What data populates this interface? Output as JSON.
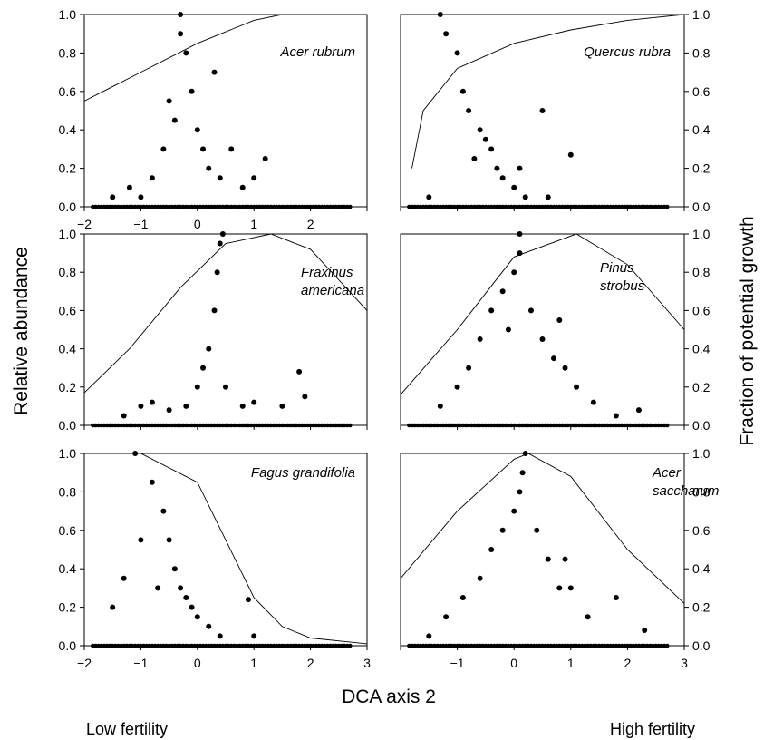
{
  "figure": {
    "ylabel_left": "Relative abundance",
    "ylabel_right": "Fraction of potential growth",
    "xlabel": "DCA axis 2",
    "fertility_low": "Low fertility",
    "fertility_high": "High fertility"
  },
  "chart_data": [
    {
      "type": "scatter",
      "title": "Acer rubrum",
      "xlim": [
        -2,
        3
      ],
      "ylim": [
        0,
        1
      ],
      "x_ticks": [
        "-2",
        "-1",
        "0",
        "1",
        "2"
      ],
      "y_ticks_left": [
        "0.0",
        "0.2",
        "0.4",
        "0.6",
        "0.8",
        "1.0"
      ],
      "y_ticks_right": [],
      "points_shown": "dense cloud centered near x=-0.2, y 0–1.0, most points below 0.5; many zeros spanning x -1.8 to 2.7",
      "abundance_points": [
        [
          -1.0,
          0.05
        ],
        [
          -0.8,
          0.15
        ],
        [
          -0.6,
          0.3
        ],
        [
          -0.5,
          0.55
        ],
        [
          -0.4,
          0.45
        ],
        [
          -0.3,
          1.0
        ],
        [
          -0.3,
          0.9
        ],
        [
          -0.2,
          0.8
        ],
        [
          -0.1,
          0.6
        ],
        [
          0.0,
          0.4
        ],
        [
          0.1,
          0.3
        ],
        [
          0.2,
          0.2
        ],
        [
          0.4,
          0.15
        ],
        [
          0.6,
          0.3
        ],
        [
          0.8,
          0.1
        ],
        [
          1.0,
          0.15
        ],
        [
          1.2,
          0.25
        ],
        [
          -1.2,
          0.1
        ],
        [
          -1.5,
          0.05
        ],
        [
          0.3,
          0.7
        ]
      ],
      "growth_curve": [
        [
          -2,
          0.55
        ],
        [
          -1,
          0.7
        ],
        [
          0,
          0.85
        ],
        [
          1,
          0.97
        ],
        [
          1.5,
          1.0
        ],
        [
          2,
          1.0
        ],
        [
          3,
          1.0
        ]
      ]
    },
    {
      "type": "scatter",
      "title": "Quercus rubra",
      "xlim": [
        -2,
        3
      ],
      "ylim": [
        0,
        1
      ],
      "x_ticks": [],
      "y_ticks_left": [],
      "y_ticks_right": [
        "0.0",
        "0.2",
        "0.4",
        "0.6",
        "0.8",
        "1.0"
      ],
      "points_shown": "points concentrated x -1.5 to 0.5, high abundances near x -1.3 (up to 1.0), decreasing toward x 0.5",
      "abundance_points": [
        [
          -1.3,
          1.0
        ],
        [
          -1.2,
          0.9
        ],
        [
          -1.0,
          0.8
        ],
        [
          -0.9,
          0.6
        ],
        [
          -0.8,
          0.5
        ],
        [
          -0.6,
          0.4
        ],
        [
          -0.5,
          0.35
        ],
        [
          -0.4,
          0.3
        ],
        [
          -0.3,
          0.2
        ],
        [
          -0.2,
          0.15
        ],
        [
          0.0,
          0.1
        ],
        [
          0.2,
          0.05
        ],
        [
          0.5,
          0.5
        ],
        [
          1.0,
          0.27
        ],
        [
          0.6,
          0.05
        ],
        [
          -1.5,
          0.05
        ],
        [
          -0.7,
          0.25
        ],
        [
          0.1,
          0.2
        ]
      ],
      "growth_curve": [
        [
          -1.8,
          0.2
        ],
        [
          -1.6,
          0.5
        ],
        [
          -1,
          0.72
        ],
        [
          0,
          0.85
        ],
        [
          1,
          0.92
        ],
        [
          2,
          0.97
        ],
        [
          3,
          1.0
        ]
      ]
    },
    {
      "type": "scatter",
      "title": "Fraxinus americana",
      "xlim": [
        -2,
        3
      ],
      "ylim": [
        0,
        1
      ],
      "x_ticks": [],
      "y_ticks_left": [
        "0.0",
        "0.2",
        "0.4",
        "0.6",
        "0.8",
        "1.0"
      ],
      "y_ticks_right": [],
      "points_shown": "mostly low abundance (<0.2) spread x -1.3 to 2, a spike near x 0.3–0.5 reaching 1.0",
      "abundance_points": [
        [
          -1.0,
          0.1
        ],
        [
          -0.8,
          0.12
        ],
        [
          -0.5,
          0.08
        ],
        [
          -0.2,
          0.1
        ],
        [
          0.0,
          0.2
        ],
        [
          0.1,
          0.3
        ],
        [
          0.2,
          0.4
        ],
        [
          0.3,
          0.6
        ],
        [
          0.35,
          0.8
        ],
        [
          0.4,
          0.95
        ],
        [
          0.45,
          1.0
        ],
        [
          0.5,
          0.2
        ],
        [
          0.8,
          0.1
        ],
        [
          1.0,
          0.12
        ],
        [
          1.5,
          0.1
        ],
        [
          1.8,
          0.28
        ],
        [
          1.9,
          0.15
        ],
        [
          -1.3,
          0.05
        ]
      ],
      "growth_curve": [
        [
          -2,
          0.17
        ],
        [
          -1.2,
          0.4
        ],
        [
          -0.3,
          0.72
        ],
        [
          0.5,
          0.95
        ],
        [
          1.3,
          1.0
        ],
        [
          2,
          0.92
        ],
        [
          3,
          0.6
        ]
      ]
    },
    {
      "type": "scatter",
      "title": "Pinus strobus",
      "xlim": [
        -2,
        3
      ],
      "ylim": [
        0,
        1
      ],
      "x_ticks": [],
      "y_ticks_left": [],
      "y_ticks_right": [
        "0.0",
        "0.2",
        "0.4",
        "0.6",
        "0.8",
        "1.0"
      ],
      "points_shown": "triangular cloud peaking near x 0.1 at 1.0, spreading x -1.5 to 2.3",
      "abundance_points": [
        [
          0.1,
          1.0
        ],
        [
          0.1,
          0.9
        ],
        [
          0.0,
          0.8
        ],
        [
          -0.2,
          0.7
        ],
        [
          -0.4,
          0.6
        ],
        [
          -0.6,
          0.45
        ],
        [
          -0.8,
          0.3
        ],
        [
          -1.0,
          0.2
        ],
        [
          -1.3,
          0.1
        ],
        [
          0.3,
          0.6
        ],
        [
          0.5,
          0.45
        ],
        [
          0.7,
          0.35
        ],
        [
          0.9,
          0.3
        ],
        [
          1.1,
          0.2
        ],
        [
          1.4,
          0.12
        ],
        [
          1.8,
          0.05
        ],
        [
          2.2,
          0.08
        ],
        [
          0.8,
          0.55
        ],
        [
          -0.1,
          0.5
        ]
      ],
      "growth_curve": [
        [
          -2,
          0.16
        ],
        [
          -1,
          0.5
        ],
        [
          0,
          0.88
        ],
        [
          1.1,
          1.0
        ],
        [
          2,
          0.84
        ],
        [
          3,
          0.5
        ]
      ]
    },
    {
      "type": "scatter",
      "title": "Fagus grandifolia",
      "xlim": [
        -2,
        3
      ],
      "ylim": [
        0,
        1
      ],
      "x_ticks": [
        "-2",
        "-1",
        "0",
        "1",
        "2",
        "3"
      ],
      "y_ticks_left": [
        "0.0",
        "0.2",
        "0.4",
        "0.6",
        "0.8",
        "1.0"
      ],
      "y_ticks_right": [],
      "points_shown": "points concentrated x -1.5 to 0.5, peak 1.0 near x -1.1, a few points to x 1",
      "abundance_points": [
        [
          -1.1,
          1.0
        ],
        [
          -0.8,
          0.85
        ],
        [
          -1.0,
          0.55
        ],
        [
          -1.3,
          0.35
        ],
        [
          -1.5,
          0.2
        ],
        [
          -0.6,
          0.7
        ],
        [
          -0.5,
          0.55
        ],
        [
          -0.4,
          0.4
        ],
        [
          -0.3,
          0.3
        ],
        [
          -0.2,
          0.25
        ],
        [
          -0.1,
          0.2
        ],
        [
          0.0,
          0.15
        ],
        [
          0.2,
          0.1
        ],
        [
          0.4,
          0.05
        ],
        [
          0.9,
          0.24
        ],
        [
          1.0,
          0.05
        ],
        [
          -0.7,
          0.3
        ]
      ],
      "growth_curve": [
        [
          -2,
          1.0
        ],
        [
          -1,
          1.0
        ],
        [
          0,
          0.85
        ],
        [
          0.5,
          0.55
        ],
        [
          1,
          0.25
        ],
        [
          1.5,
          0.1
        ],
        [
          2,
          0.04
        ],
        [
          3,
          0.01
        ]
      ]
    },
    {
      "type": "scatter",
      "title": "Acer saccharum",
      "xlim": [
        -2,
        3
      ],
      "ylim": [
        0,
        1
      ],
      "x_ticks": [
        "-1",
        "0",
        "1",
        "2",
        "3"
      ],
      "y_ticks_left": [],
      "y_ticks_right": [
        "0.0",
        "0.2",
        "0.4",
        "0.6",
        "0.8",
        "1.0"
      ],
      "points_shown": "cloud centered near x 0.1, peaks 1.0 near x 0.2, spread x -1.6 to 2.4",
      "abundance_points": [
        [
          0.2,
          1.0
        ],
        [
          0.15,
          0.9
        ],
        [
          0.1,
          0.8
        ],
        [
          0.0,
          0.7
        ],
        [
          -0.2,
          0.6
        ],
        [
          -0.4,
          0.5
        ],
        [
          -0.6,
          0.35
        ],
        [
          -0.9,
          0.25
        ],
        [
          -1.2,
          0.15
        ],
        [
          -1.5,
          0.05
        ],
        [
          0.4,
          0.6
        ],
        [
          0.6,
          0.45
        ],
        [
          0.8,
          0.3
        ],
        [
          1.0,
          0.3
        ],
        [
          1.3,
          0.15
        ],
        [
          1.8,
          0.25
        ],
        [
          2.3,
          0.08
        ],
        [
          0.9,
          0.45
        ]
      ],
      "growth_curve": [
        [
          -2,
          0.35
        ],
        [
          -1,
          0.7
        ],
        [
          0,
          0.97
        ],
        [
          0.25,
          1.0
        ],
        [
          1,
          0.88
        ],
        [
          2,
          0.5
        ],
        [
          3,
          0.22
        ]
      ]
    }
  ]
}
